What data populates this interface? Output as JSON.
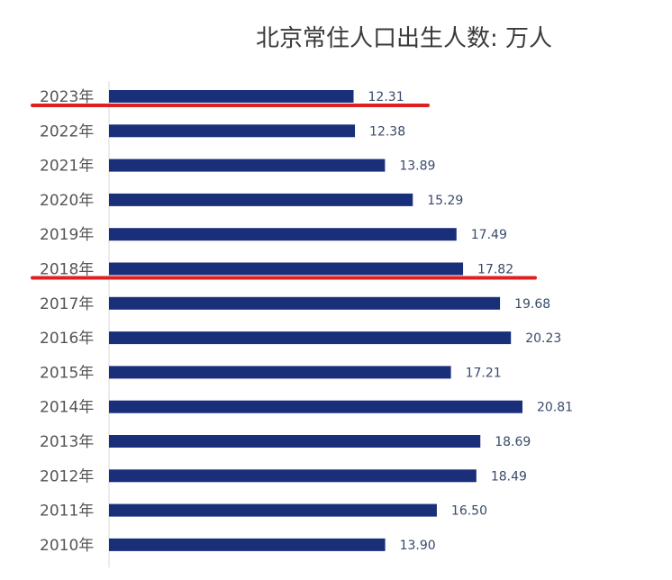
{
  "chart_data": {
    "type": "bar",
    "orientation": "horizontal",
    "title": "北京常住人口出生人数: 万人",
    "categories": [
      "2023年",
      "2022年",
      "2021年",
      "2020年",
      "2019年",
      "2018年",
      "2017年",
      "2016年",
      "2015年",
      "2014年",
      "2013年",
      "2012年",
      "2011年",
      "2010年"
    ],
    "values": [
      12.31,
      12.38,
      13.89,
      15.29,
      17.49,
      17.82,
      19.68,
      20.23,
      17.21,
      20.81,
      18.69,
      18.49,
      16.5,
      13.9
    ],
    "value_labels": [
      "12.31",
      "12.38",
      "13.89",
      "15.29",
      "17.49",
      "17.82",
      "19.68",
      "20.23",
      "17.21",
      "20.81",
      "18.69",
      "18.49",
      "16.50",
      "13.90"
    ],
    "xlim": [
      0,
      21
    ],
    "bar_color": "#1a2f7a",
    "highlight_color": "#e02020",
    "highlighted_categories": [
      "2023年",
      "2018年"
    ],
    "grid": false
  }
}
